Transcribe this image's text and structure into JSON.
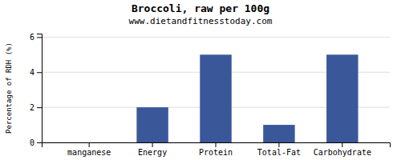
{
  "chart_data": {
    "type": "bar",
    "title": "Broccoli, raw per 100g",
    "subtitle": "www.dietandfitnesstoday.com",
    "categories": [
      "manganese",
      "Energy",
      "Protein",
      "Total-Fat",
      "Carbohydrate"
    ],
    "values": [
      0,
      2.0,
      5.0,
      1.0,
      5.0
    ],
    "color": "#3a5899",
    "ylabel": "Percentage of RDH (%)",
    "ylim": [
      0,
      6.2
    ],
    "yticks": [
      0,
      2,
      4,
      6
    ],
    "grid": true
  }
}
